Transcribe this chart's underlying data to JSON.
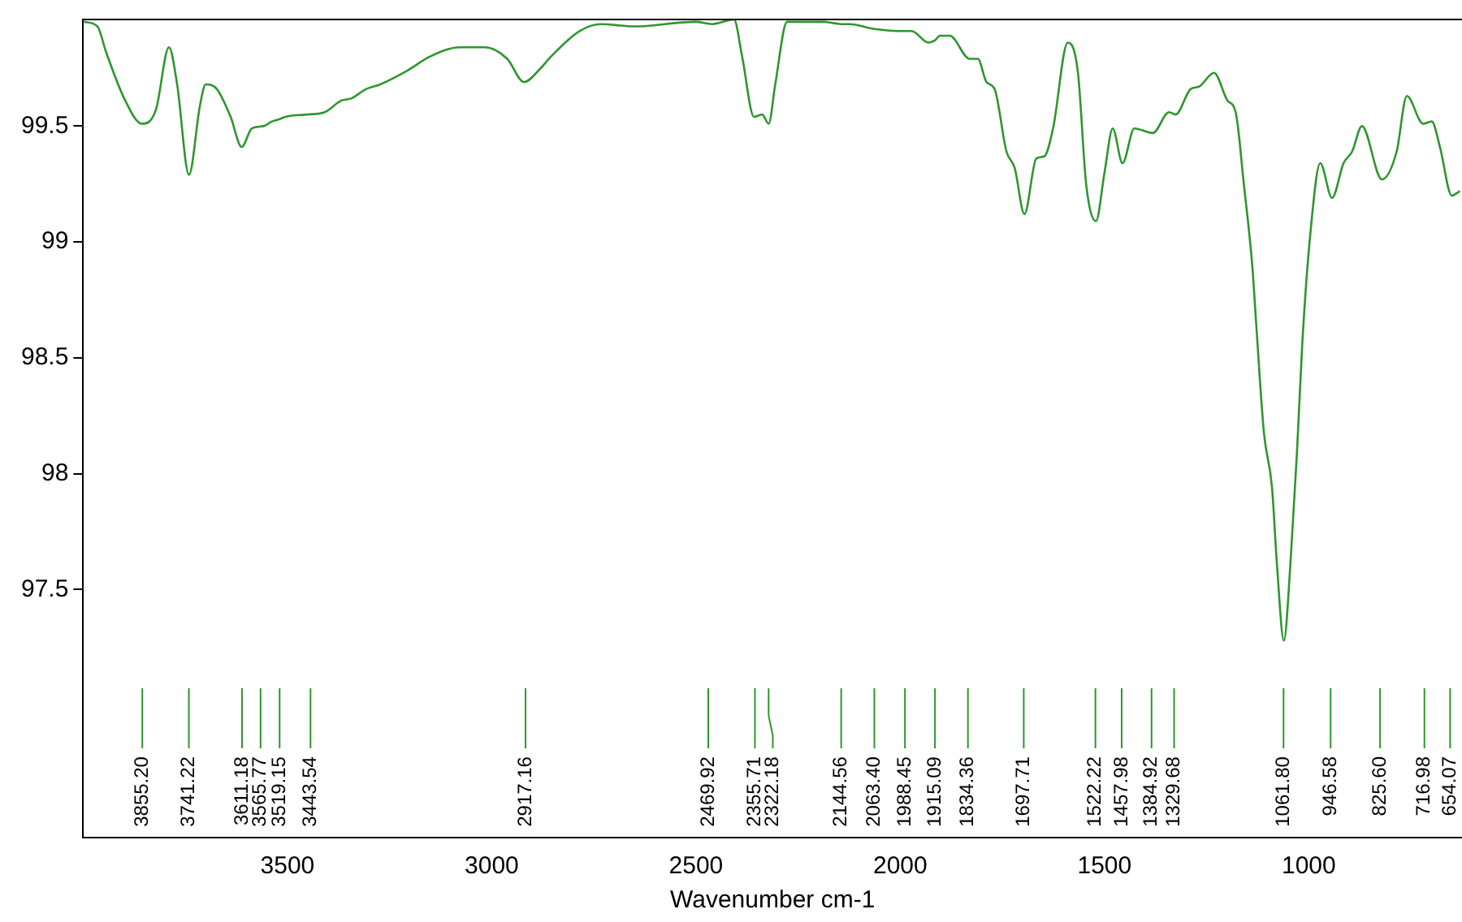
{
  "chart_data": {
    "type": "line",
    "xlabel": "Wavenumber cm-1",
    "xlim": [
      4000,
      625
    ],
    "xticks": [
      3500,
      3000,
      2500,
      2000,
      1500,
      1000
    ],
    "ylim": [
      96.43,
      99.96
    ],
    "yticks": [
      97.5,
      98.0,
      98.5,
      99.0,
      99.5
    ],
    "grid": false,
    "legend": false,
    "marker": "none",
    "line_style": "solid",
    "series": [
      {
        "color": "#2e962e",
        "x": [
          3998,
          3965,
          3944,
          3897,
          3856,
          3822,
          3790,
          3770,
          3741,
          3714,
          3700,
          3673,
          3639,
          3612,
          3587,
          3558,
          3538,
          3519,
          3505,
          3450,
          3409,
          3368,
          3343,
          3307,
          3273,
          3206,
          3151,
          3078,
          3017,
          2962,
          2921,
          2880,
          2855,
          2785,
          2733,
          2651,
          2501,
          2460,
          2407,
          2387,
          2358,
          2338,
          2322,
          2306,
          2277,
          2188,
          2144,
          2123,
          2066,
          1988,
          1972,
          1931,
          1915,
          1903,
          1879,
          1830,
          1810,
          1789,
          1769,
          1740,
          1720,
          1696,
          1667,
          1647,
          1626,
          1590,
          1565,
          1545,
          1521,
          1500,
          1480,
          1456,
          1427,
          1382,
          1342,
          1326,
          1289,
          1269,
          1232,
          1199,
          1179,
          1159,
          1138,
          1130,
          1110,
          1090,
          1078,
          1061,
          1045,
          1029,
          1016,
          996,
          972,
          943,
          915,
          894,
          870,
          821,
          785,
          760,
          720,
          699,
          679,
          650,
          630
        ],
        "values": [
          99.95,
          99.93,
          99.82,
          99.61,
          99.51,
          99.57,
          99.84,
          99.68,
          99.29,
          99.59,
          99.68,
          99.66,
          99.54,
          99.41,
          99.49,
          99.5,
          99.52,
          99.53,
          99.54,
          99.55,
          99.56,
          99.61,
          99.62,
          99.66,
          99.68,
          99.74,
          99.8,
          99.84,
          99.84,
          99.79,
          99.69,
          99.75,
          99.8,
          99.91,
          99.94,
          99.93,
          99.95,
          99.94,
          99.96,
          99.8,
          99.54,
          99.55,
          99.51,
          99.68,
          99.95,
          99.95,
          99.94,
          99.94,
          99.92,
          99.91,
          99.91,
          99.86,
          99.87,
          99.89,
          99.89,
          99.79,
          99.79,
          99.69,
          99.66,
          99.39,
          99.32,
          99.12,
          99.36,
          99.37,
          99.49,
          99.86,
          99.73,
          99.25,
          99.09,
          99.3,
          99.49,
          99.34,
          99.49,
          99.47,
          99.56,
          99.55,
          99.66,
          99.67,
          99.73,
          99.61,
          99.56,
          99.25,
          98.89,
          98.68,
          98.18,
          97.94,
          97.61,
          97.28,
          97.61,
          98.09,
          98.56,
          99.04,
          99.34,
          99.19,
          99.34,
          99.39,
          99.5,
          99.27,
          99.39,
          99.63,
          99.51,
          99.52,
          99.41,
          99.2,
          99.22
        ]
      }
    ],
    "annotations": [
      {
        "text": "3855.20",
        "x": 3855.2
      },
      {
        "text": "3741.22",
        "x": 3741.22
      },
      {
        "text": "3611.18",
        "x": 3611.18
      },
      {
        "text": "3565.77",
        "x": 3565.77
      },
      {
        "text": "3519.15",
        "x": 3519.15
      },
      {
        "text": "3443.54",
        "x": 3443.54
      },
      {
        "text": "2917.16",
        "x": 2917.16
      },
      {
        "text": "2469.92",
        "x": 2469.92
      },
      {
        "text": "2355.71",
        "x": 2355.71
      },
      {
        "text": "2322.18",
        "x": 2322.18
      },
      {
        "text": "2144.56",
        "x": 2144.56
      },
      {
        "text": "2063.40",
        "x": 2063.4
      },
      {
        "text": "1988.45",
        "x": 1988.45
      },
      {
        "text": "1915.09",
        "x": 1915.09
      },
      {
        "text": "1834.36",
        "x": 1834.36
      },
      {
        "text": "1697.71",
        "x": 1697.71
      },
      {
        "text": "1522.22",
        "x": 1522.22
      },
      {
        "text": "1457.98",
        "x": 1457.98
      },
      {
        "text": "1384.92",
        "x": 1384.92
      },
      {
        "text": "1329.68",
        "x": 1329.68
      },
      {
        "text": "1061.80",
        "x": 1061.8
      },
      {
        "text": "946.58",
        "x": 946.58
      },
      {
        "text": "825.60",
        "x": 825.6
      },
      {
        "text": "716.98",
        "x": 716.98
      },
      {
        "text": "654.07",
        "x": 654.07
      }
    ]
  }
}
